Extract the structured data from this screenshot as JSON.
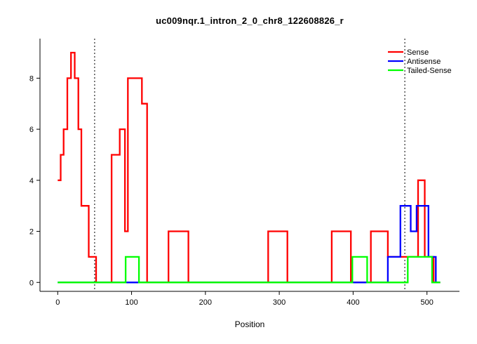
{
  "title": "uc009nqr.1_intron_2_0_chr8_122608826_r",
  "chart_data": {
    "type": "line",
    "subtype": "step",
    "title": "uc009nqr.1_intron_2_0_chr8_122608826_r",
    "xlabel": "Position",
    "ylabel": "",
    "xlim": [
      -24,
      544
    ],
    "ylim": [
      -0.35,
      9.55
    ],
    "x_ticks": [
      0,
      100,
      200,
      300,
      400,
      500
    ],
    "y_ticks": [
      0,
      2,
      4,
      6,
      8
    ],
    "grid": false,
    "legend_position": "top-right",
    "vlines": [
      {
        "x": 50,
        "style": "dotted",
        "color": "#000000"
      },
      {
        "x": 470,
        "style": "dotted",
        "color": "#000000"
      }
    ],
    "series": [
      {
        "name": "Sense",
        "color": "#FF0000",
        "points": [
          [
            0,
            4
          ],
          [
            4,
            5
          ],
          [
            8,
            6
          ],
          [
            13,
            8
          ],
          [
            18,
            9
          ],
          [
            23,
            8
          ],
          [
            28,
            6
          ],
          [
            32,
            3
          ],
          [
            42,
            1
          ],
          [
            52,
            0
          ],
          [
            73,
            5
          ],
          [
            84,
            6
          ],
          [
            91,
            2
          ],
          [
            95,
            8
          ],
          [
            114,
            7
          ],
          [
            121,
            0
          ],
          [
            150,
            2
          ],
          [
            177,
            0
          ],
          [
            285,
            2
          ],
          [
            311,
            0
          ],
          [
            371,
            2
          ],
          [
            397,
            0
          ],
          [
            424,
            2
          ],
          [
            447,
            1
          ],
          [
            488,
            4
          ],
          [
            497,
            1
          ],
          [
            509,
            0
          ],
          [
            518,
            0
          ]
        ]
      },
      {
        "name": "Antisense",
        "color": "#0000FF",
        "points": [
          [
            0,
            0
          ],
          [
            447,
            1
          ],
          [
            464,
            3
          ],
          [
            478,
            2
          ],
          [
            486,
            3
          ],
          [
            502,
            1
          ],
          [
            512,
            0
          ],
          [
            518,
            0
          ]
        ]
      },
      {
        "name": "Tailed-Sense",
        "color": "#00FF00",
        "points": [
          [
            0,
            0
          ],
          [
            92,
            1
          ],
          [
            110,
            0
          ],
          [
            399,
            1
          ],
          [
            419,
            0
          ],
          [
            474,
            1
          ],
          [
            507,
            0
          ],
          [
            518,
            0
          ]
        ]
      }
    ]
  }
}
